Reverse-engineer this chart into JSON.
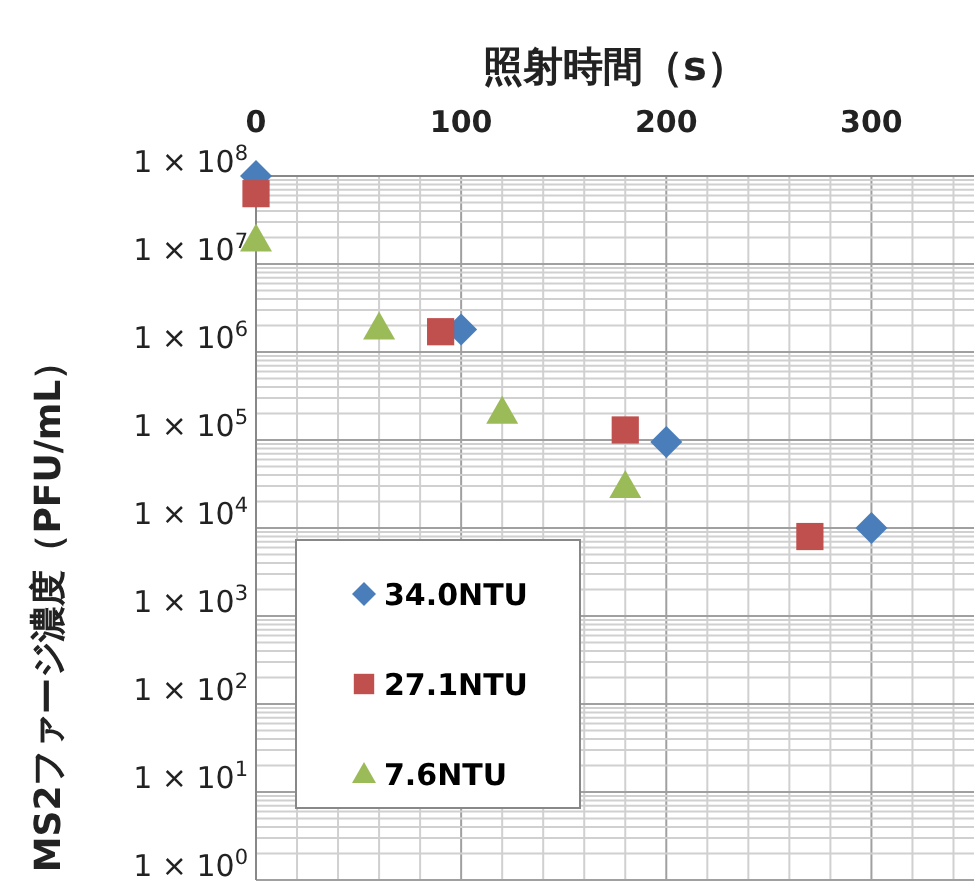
{
  "chart_data": {
    "type": "scatter",
    "xlabel": "照射時間（s）",
    "ylabel": "MS2ファージ濃度（PFU/mL）",
    "xlim": [
      0,
      350
    ],
    "xticks": [
      0,
      100,
      200,
      300
    ],
    "ylim": [
      1,
      100000000
    ],
    "log": "y",
    "yticks": [
      {
        "value": 1,
        "label": "1 × 10$^{0}$"
      },
      {
        "value": 10,
        "label": "1 × 10$^{1}$"
      },
      {
        "value": 100,
        "label": "1 × 10$^{2}$"
      },
      {
        "value": 1000,
        "label": "1 × 10$^{3}$"
      },
      {
        "value": 10000,
        "label": "1 × 10$^{4}$"
      },
      {
        "value": 100000,
        "label": "1 × 10$^{5}$"
      },
      {
        "value": 1000000,
        "label": "1 × 10$^{6}$"
      },
      {
        "value": 10000000,
        "label": "1 × 10$^{7}$"
      },
      {
        "value": 100000000,
        "label": "1 × 10$^{8}$"
      }
    ],
    "grid": true,
    "legend": "bottom left",
    "series": [
      {
        "name": "34.0NTU",
        "color": "#4a7ebb",
        "marker": "diamond",
        "x": [
          0,
          100,
          200,
          300
        ],
        "values": [
          100000000,
          1800000,
          95000,
          10000
        ]
      },
      {
        "name": "27.1NTU",
        "color": "#c0504d",
        "marker": "square",
        "x": [
          0,
          90,
          180,
          270
        ],
        "values": [
          63000000,
          1700000,
          130000,
          8000
        ]
      },
      {
        "name": "7.6NTU",
        "color": "#9bbb59",
        "marker": "triangle",
        "x": [
          0,
          60,
          120,
          180
        ],
        "values": [
          19000000,
          1900000,
          210000,
          30000
        ]
      }
    ]
  }
}
